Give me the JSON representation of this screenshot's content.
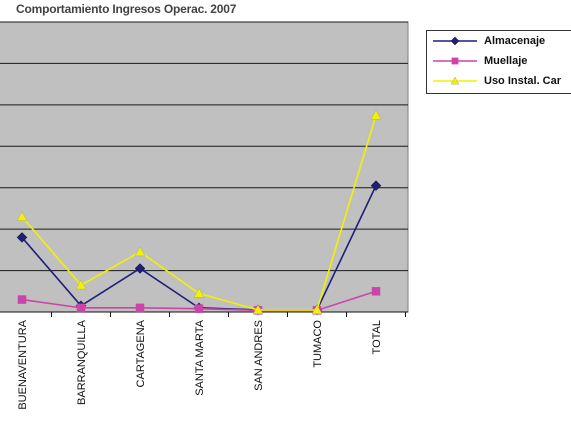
{
  "chart_data": {
    "type": "line",
    "title": "Comportamiento Ingresos Operac. 2007",
    "xlabel": "",
    "ylabel": "",
    "categories": [
      "BUENAVENTURA",
      "BARRANQUILLA",
      "CARTAGENA",
      "SANTA MARTA",
      "SAN ANDRES",
      "TUMACO",
      "TOTAL"
    ],
    "ylim": [
      0,
      7
    ],
    "grid": true,
    "legend_position": "top-right",
    "plot_background": "#c0c0c0",
    "series": [
      {
        "name": "Almacenaje",
        "color": "#1f1f7a",
        "marker": "diamond",
        "values": [
          1.8,
          0.15,
          1.05,
          0.1,
          0.05,
          0.05,
          3.05
        ]
      },
      {
        "name": "Muellaje",
        "color": "#cc44aa",
        "marker": "square",
        "values": [
          0.3,
          0.1,
          0.1,
          0.08,
          0.04,
          0.04,
          0.5
        ]
      },
      {
        "name": "Uso Instal. Car",
        "color": "#f2f200",
        "marker": "triangle",
        "values": [
          2.3,
          0.65,
          1.45,
          0.45,
          0.05,
          0.05,
          4.75
        ]
      }
    ]
  }
}
